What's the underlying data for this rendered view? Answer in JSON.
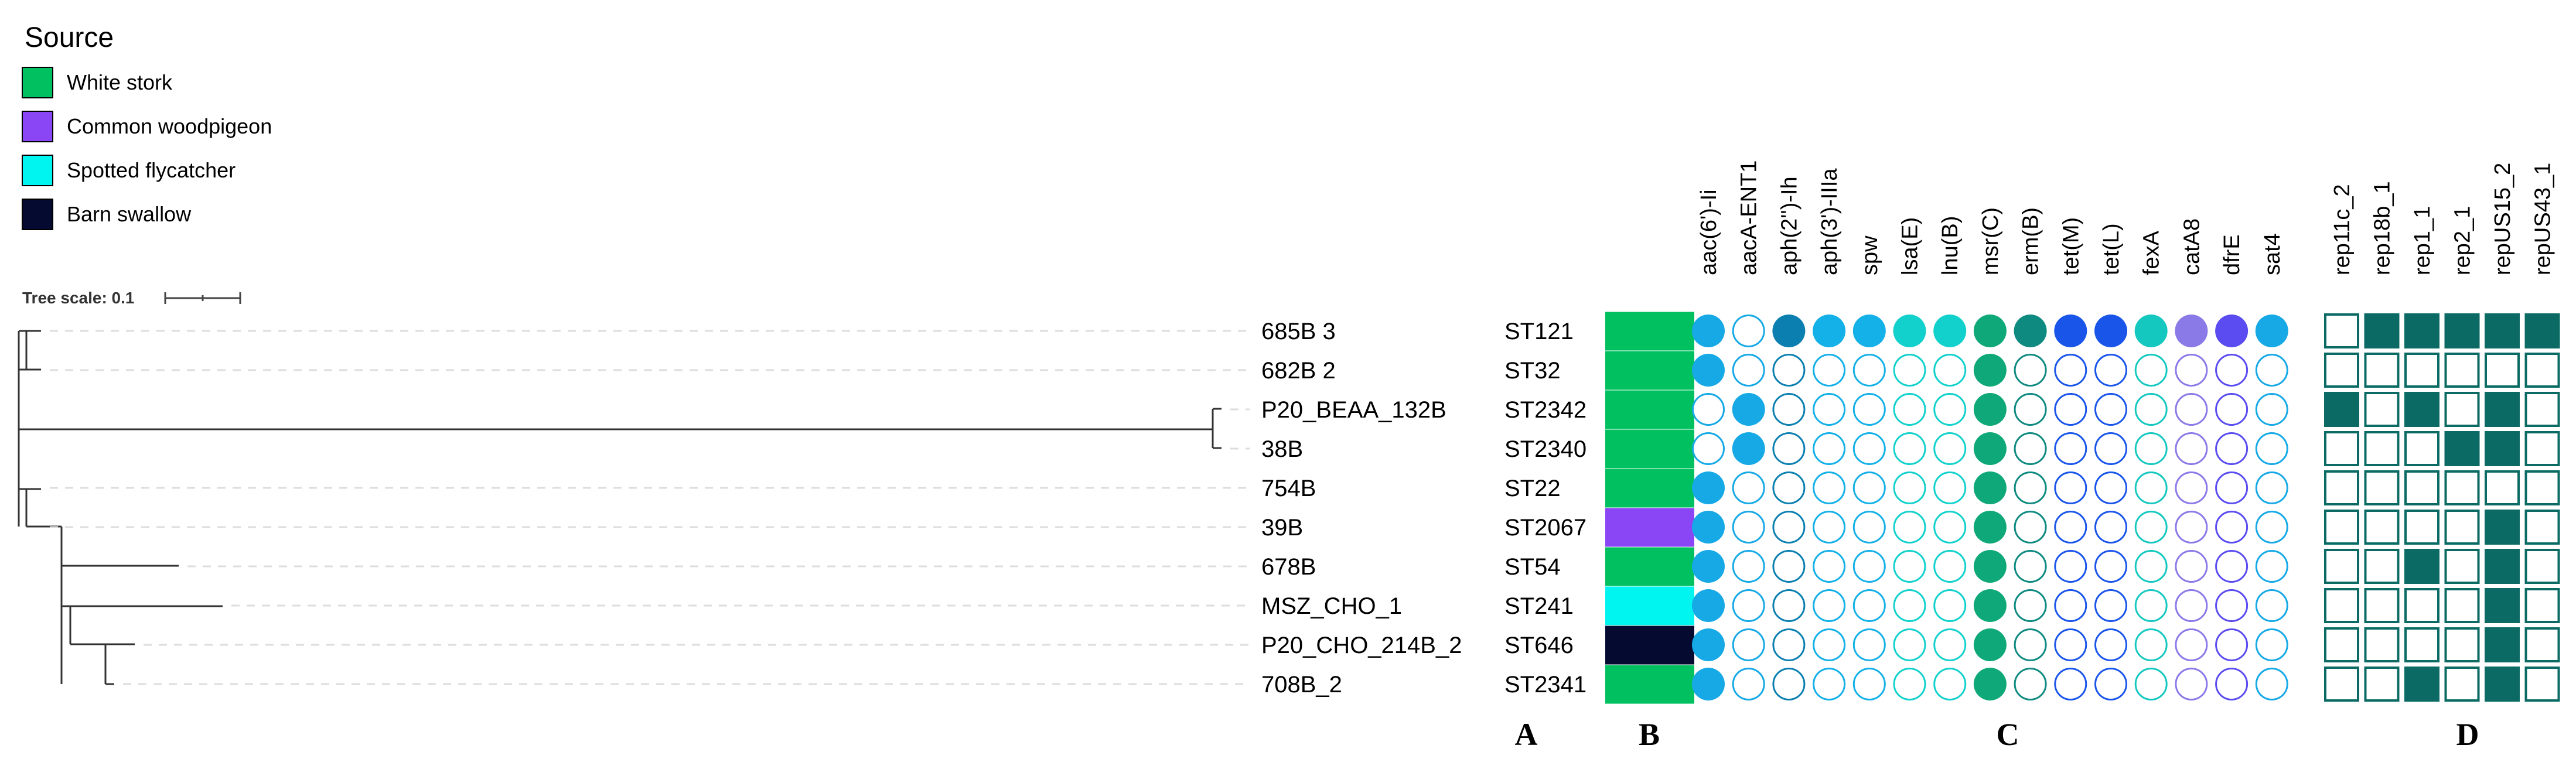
{
  "legend": {
    "title": "Source",
    "items": [
      {
        "label": "White stork",
        "color": "#00c060"
      },
      {
        "label": "Common woodpigeon",
        "color": "#8a45f5"
      },
      {
        "label": "Spotted flycatcher",
        "color": "#00f5f0"
      },
      {
        "label": "Barn swallow",
        "color": "#050a30"
      }
    ]
  },
  "tree_scale": {
    "label": "Tree scale: 0.1"
  },
  "samples": [
    {
      "name": "685B 3",
      "st": "ST121",
      "source": "White stork"
    },
    {
      "name": "682B 2",
      "st": "ST32",
      "source": "White stork"
    },
    {
      "name": "P20_BEAA_132B",
      "st": "ST2342",
      "source": "White stork"
    },
    {
      "name": "38B",
      "st": "ST2340",
      "source": "White stork"
    },
    {
      "name": "754B",
      "st": "ST22",
      "source": "White stork"
    },
    {
      "name": "39B",
      "st": "ST2067",
      "source": "Common woodpigeon"
    },
    {
      "name": "678B",
      "st": "ST54",
      "source": "White stork"
    },
    {
      "name": "MSZ_CHO_1",
      "st": "ST241",
      "source": "Spotted flycatcher"
    },
    {
      "name": "P20_CHO_214B_2",
      "st": "ST646",
      "source": "Barn swallow"
    },
    {
      "name": "708B_2",
      "st": "ST2341",
      "source": "White stork"
    }
  ],
  "genes": [
    {
      "name": "aac(6')-Ii",
      "color": "#16a9e6",
      "present": [
        1,
        1,
        0,
        0,
        1,
        1,
        1,
        1,
        1,
        1
      ]
    },
    {
      "name": "aacA-ENT1",
      "color": "#16a9e6",
      "present": [
        0,
        0,
        1,
        1,
        0,
        0,
        0,
        0,
        0,
        0
      ]
    },
    {
      "name": "aph(2'')-Ih",
      "color": "#0a7fb0",
      "present": [
        1,
        0,
        0,
        0,
        0,
        0,
        0,
        0,
        0,
        0
      ]
    },
    {
      "name": "aph(3')-IIIa",
      "color": "#14b0e8",
      "present": [
        1,
        0,
        0,
        0,
        0,
        0,
        0,
        0,
        0,
        0
      ]
    },
    {
      "name": "spw",
      "color": "#14b0e8",
      "present": [
        1,
        0,
        0,
        0,
        0,
        0,
        0,
        0,
        0,
        0
      ]
    },
    {
      "name": "lsa(E)",
      "color": "#12d1cc",
      "present": [
        1,
        0,
        0,
        0,
        0,
        0,
        0,
        0,
        0,
        0
      ]
    },
    {
      "name": "lnu(B)",
      "color": "#12d1cc",
      "present": [
        1,
        0,
        0,
        0,
        0,
        0,
        0,
        0,
        0,
        0
      ]
    },
    {
      "name": "msr(C)",
      "color": "#0fa878",
      "present": [
        1,
        1,
        1,
        1,
        1,
        1,
        1,
        1,
        1,
        1
      ]
    },
    {
      "name": "erm(B)",
      "color": "#0e8a80",
      "present": [
        1,
        0,
        0,
        0,
        0,
        0,
        0,
        0,
        0,
        0
      ]
    },
    {
      "name": "tet(M)",
      "color": "#1a55ea",
      "present": [
        1,
        0,
        0,
        0,
        0,
        0,
        0,
        0,
        0,
        0
      ]
    },
    {
      "name": "tet(L)",
      "color": "#1a55ea",
      "present": [
        1,
        0,
        0,
        0,
        0,
        0,
        0,
        0,
        0,
        0
      ]
    },
    {
      "name": "fexA",
      "color": "#14c8c0",
      "present": [
        1,
        0,
        0,
        0,
        0,
        0,
        0,
        0,
        0,
        0
      ]
    },
    {
      "name": "catA8",
      "color": "#8a7ae8",
      "present": [
        1,
        0,
        0,
        0,
        0,
        0,
        0,
        0,
        0,
        0
      ]
    },
    {
      "name": "dfrE",
      "color": "#5a4cf0",
      "present": [
        1,
        0,
        0,
        0,
        0,
        0,
        0,
        0,
        0,
        0
      ]
    },
    {
      "name": "sat4",
      "color": "#16a9e6",
      "present": [
        1,
        0,
        0,
        0,
        0,
        0,
        0,
        0,
        0,
        0
      ]
    }
  ],
  "plasmid_color": "#0b6b64",
  "plasmids": [
    {
      "name": "rep11c_2",
      "present": [
        0,
        0,
        1,
        0,
        0,
        0,
        0,
        0,
        0,
        0
      ]
    },
    {
      "name": "rep18b_1",
      "present": [
        1,
        0,
        0,
        0,
        0,
        0,
        0,
        0,
        0,
        0
      ]
    },
    {
      "name": "rep1_1",
      "present": [
        1,
        0,
        1,
        0,
        0,
        0,
        1,
        0,
        0,
        1
      ]
    },
    {
      "name": "rep2_1",
      "present": [
        1,
        0,
        0,
        1,
        0,
        0,
        0,
        0,
        0,
        0
      ]
    },
    {
      "name": "repUS15_2",
      "present": [
        1,
        0,
        1,
        1,
        0,
        1,
        1,
        1,
        1,
        1
      ]
    },
    {
      "name": "repUS43_1",
      "present": [
        1,
        0,
        0,
        0,
        0,
        0,
        0,
        0,
        0,
        0
      ]
    }
  ],
  "panels": [
    "A",
    "B",
    "C",
    "D"
  ]
}
